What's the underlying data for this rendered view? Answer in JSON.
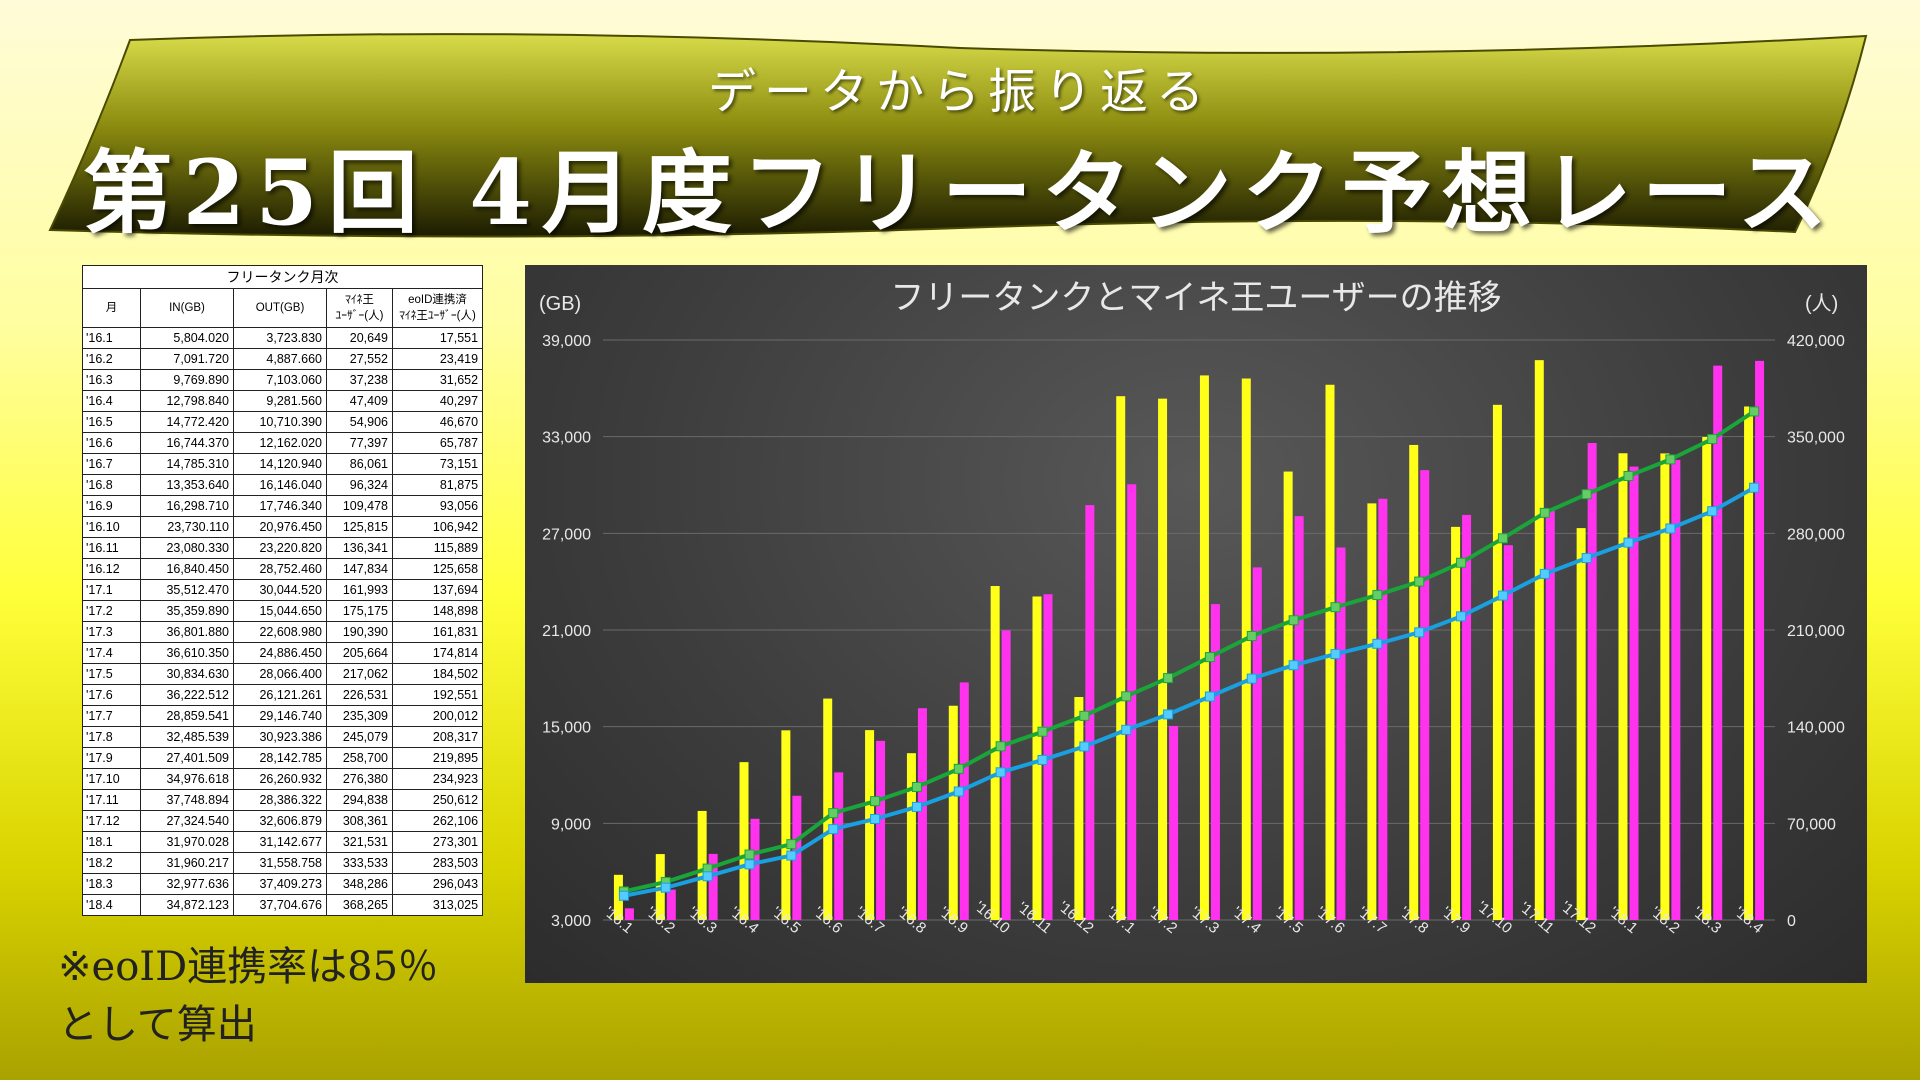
{
  "banner": {
    "subtitle": "データから振り返る",
    "title": "第25回 4月度フリータンク予想レース"
  },
  "table": {
    "caption": "フリータンク月次",
    "headers": [
      "月",
      "IN(GB)",
      "OUT(GB)",
      "ﾏｲﾈ王\nﾕｰｻﾞｰ(人)",
      "eoID連携済\nﾏｲﾈ王ﾕｰｻﾞｰ(人)"
    ],
    "rows": [
      [
        "'16.1",
        "5,804.020",
        "3,723.830",
        "20,649",
        "17,551"
      ],
      [
        "'16.2",
        "7,091.720",
        "4,887.660",
        "27,552",
        "23,419"
      ],
      [
        "'16.3",
        "9,769.890",
        "7,103.060",
        "37,238",
        "31,652"
      ],
      [
        "'16.4",
        "12,798.840",
        "9,281.560",
        "47,409",
        "40,297"
      ],
      [
        "'16.5",
        "14,772.420",
        "10,710.390",
        "54,906",
        "46,670"
      ],
      [
        "'16.6",
        "16,744.370",
        "12,162.020",
        "77,397",
        "65,787"
      ],
      [
        "'16.7",
        "14,785.310",
        "14,120.940",
        "86,061",
        "73,151"
      ],
      [
        "'16.8",
        "13,353.640",
        "16,146.040",
        "96,324",
        "81,875"
      ],
      [
        "'16.9",
        "16,298.710",
        "17,746.340",
        "109,478",
        "93,056"
      ],
      [
        "'16.10",
        "23,730.110",
        "20,976.450",
        "125,815",
        "106,942"
      ],
      [
        "'16.11",
        "23,080.330",
        "23,220.820",
        "136,341",
        "115,889"
      ],
      [
        "'16.12",
        "16,840.450",
        "28,752.460",
        "147,834",
        "125,658"
      ],
      [
        "'17.1",
        "35,512.470",
        "30,044.520",
        "161,993",
        "137,694"
      ],
      [
        "'17.2",
        "35,359.890",
        "15,044.650",
        "175,175",
        "148,898"
      ],
      [
        "'17.3",
        "36,801.880",
        "22,608.980",
        "190,390",
        "161,831"
      ],
      [
        "'17.4",
        "36,610.350",
        "24,886.450",
        "205,664",
        "174,814"
      ],
      [
        "'17.5",
        "30,834.630",
        "28,066.400",
        "217,062",
        "184,502"
      ],
      [
        "'17.6",
        "36,222.512",
        "26,121.261",
        "226,531",
        "192,551"
      ],
      [
        "'17.7",
        "28,859.541",
        "29,146.740",
        "235,309",
        "200,012"
      ],
      [
        "'17.8",
        "32,485.539",
        "30,923.386",
        "245,079",
        "208,317"
      ],
      [
        "'17.9",
        "27,401.509",
        "28,142.785",
        "258,700",
        "219,895"
      ],
      [
        "'17.10",
        "34,976.618",
        "26,260.932",
        "276,380",
        "234,923"
      ],
      [
        "'17.11",
        "37,748.894",
        "28,386.322",
        "294,838",
        "250,612"
      ],
      [
        "'17.12",
        "27,324.540",
        "32,606.879",
        "308,361",
        "262,106"
      ],
      [
        "'18.1",
        "31,970.028",
        "31,142.677",
        "321,531",
        "273,301"
      ],
      [
        "'18.2",
        "31,960.217",
        "31,558.758",
        "333,533",
        "283,503"
      ],
      [
        "'18.3",
        "32,977.636",
        "37,409.273",
        "348,286",
        "296,043"
      ],
      [
        "'18.4",
        "34,872.123",
        "37,704.676",
        "368,265",
        "313,025"
      ]
    ]
  },
  "note": "※eoID連携率は85％\nとして算出",
  "chart_data": {
    "type": "bar",
    "title": "フリータンクとマイネ王ユーザーの推移",
    "ylabel": "(GB)",
    "y2label": "(人)",
    "ylim": [
      3000,
      39000
    ],
    "y2lim": [
      0,
      420000
    ],
    "yticks": [
      "3,000",
      "9,000",
      "15,000",
      "21,000",
      "27,000",
      "33,000",
      "39,000"
    ],
    "y2ticks": [
      "0",
      "70,000",
      "140,000",
      "210,000",
      "280,000",
      "350,000",
      "420,000"
    ],
    "categories": [
      "'16.1",
      "'16.2",
      "'16.3",
      "'16.4",
      "'16.5",
      "'16.6",
      "'16.7",
      "'16.8",
      "'16.9",
      "'16.10",
      "'16.11",
      "'16.12",
      "'17.1",
      "'17.2",
      "'17.3",
      "'17.4",
      "'17.5",
      "'17.6",
      "'17.7",
      "'17.8",
      "'17.9",
      "'17.10",
      "'17.11",
      "'17.12",
      "'18.1",
      "'18.2",
      "'18.3",
      "'18.4"
    ],
    "series": [
      {
        "kind": "bar",
        "axis": "left",
        "color": "#ffff1a",
        "values": [
          5804.02,
          7091.72,
          9769.89,
          12798.84,
          14772.42,
          16744.37,
          14785.31,
          13353.64,
          16298.71,
          23730.11,
          23080.33,
          16840.45,
          35512.47,
          35359.89,
          36801.88,
          36610.35,
          30834.63,
          36222.512,
          28859.541,
          32485.539,
          27401.509,
          34976.618,
          37748.894,
          27324.54,
          31970.028,
          31960.217,
          32977.636,
          34872.123
        ]
      },
      {
        "kind": "bar",
        "axis": "left",
        "color": "#ff33ee",
        "values": [
          3723.83,
          4887.66,
          7103.06,
          9281.56,
          10710.39,
          12162.02,
          14120.94,
          16146.04,
          17746.34,
          20976.45,
          23220.82,
          28752.46,
          30044.52,
          15044.65,
          22608.98,
          24886.45,
          28066.4,
          26121.261,
          29146.74,
          30923.386,
          28142.785,
          26260.932,
          28386.322,
          32606.879,
          31142.677,
          31558.758,
          37409.273,
          37704.676
        ]
      },
      {
        "kind": "line",
        "axis": "right",
        "color": "#1aa53a",
        "marker": "#66cc66",
        "values": [
          20649,
          27552,
          37238,
          47409,
          54906,
          77397,
          86061,
          96324,
          109478,
          125815,
          136341,
          147834,
          161993,
          175175,
          190390,
          205664,
          217062,
          226531,
          235309,
          245079,
          258700,
          276380,
          294838,
          308361,
          321531,
          333533,
          348286,
          368265
        ]
      },
      {
        "kind": "line",
        "axis": "right",
        "color": "#1a9fe0",
        "marker": "#55ccff",
        "values": [
          17551,
          23419,
          31652,
          40297,
          46670,
          65787,
          73151,
          81875,
          93056,
          106942,
          115889,
          125658,
          137694,
          148898,
          161831,
          174814,
          184502,
          192551,
          200012,
          208317,
          219895,
          234923,
          250612,
          262106,
          273301,
          283503,
          296043,
          313025
        ]
      }
    ]
  }
}
